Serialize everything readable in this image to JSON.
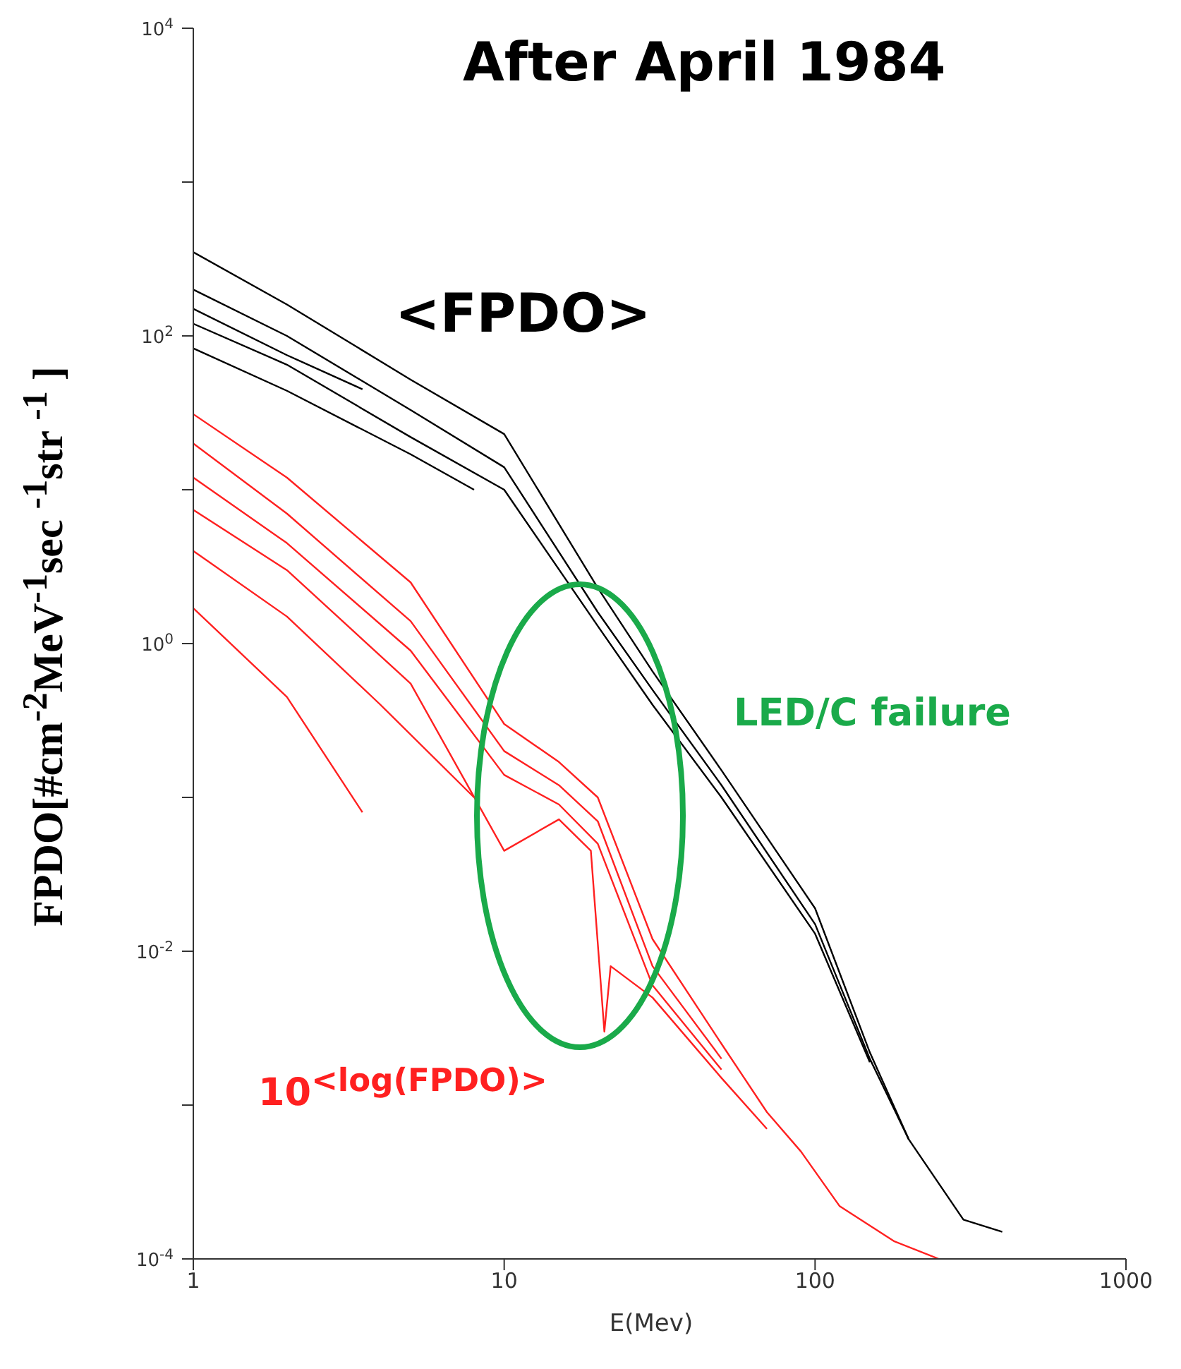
{
  "chart_data": {
    "type": "line",
    "title": "After April 1984",
    "xlabel": "E(Mev)",
    "ylabel": "FPDO[#cm$^{-2}$MeV$^{-1}$sec $^{-1}$str $^{-1}$ ]",
    "log": "xy",
    "marker": "none",
    "line_style": "solid",
    "xlim": [
      1,
      1000
    ],
    "xticks": [
      1,
      10,
      100,
      1000
    ],
    "ylim": [
      0.0001,
      10000
    ],
    "yticks": [
      {
        "value": 0.0001,
        "label": "10$^{-4}$"
      },
      {
        "value": 0.001,
        "label": null
      },
      {
        "value": 0.01,
        "label": "10$^{-2}$"
      },
      {
        "value": 0.1,
        "label": null
      },
      {
        "value": 1,
        "label": "10$^{0}$"
      },
      {
        "value": 10,
        "label": null
      },
      {
        "value": 100,
        "label": "10$^{2}$"
      },
      {
        "value": 1000,
        "label": null
      },
      {
        "value": 10000,
        "label": "10$^{4}$"
      }
    ],
    "annotations": [
      "<FPDO>",
      "LED/C failure",
      "10$^{<log(FPDO)>}$"
    ],
    "series": [
      {
        "color": "#000000",
        "x": [
          1,
          2,
          5,
          10,
          20,
          30,
          50,
          100,
          150,
          200,
          300,
          400
        ],
        "values": [
          350,
          160,
          52,
          23,
          2.3,
          0.66,
          0.15,
          0.019,
          0.0022,
          0.0006,
          0.00018,
          0.00015
        ]
      },
      {
        "color": "#000000",
        "x": [
          1,
          2,
          5,
          10,
          20,
          30,
          50,
          100,
          150,
          200
        ],
        "values": [
          200,
          100,
          33,
          14,
          1.6,
          0.5,
          0.12,
          0.015,
          0.002,
          0.0006
        ]
      },
      {
        "color": "#000000",
        "x": [
          1,
          2,
          5,
          10,
          20,
          30,
          50,
          100,
          150
        ],
        "values": [
          120,
          65,
          22,
          10,
          1.3,
          0.4,
          0.1,
          0.013,
          0.0019
        ]
      },
      {
        "color": "#000000",
        "x": [
          1,
          2,
          3.5
        ],
        "values": [
          150,
          75,
          45
        ]
      },
      {
        "color": "#000000",
        "x": [
          1,
          2,
          5,
          8
        ],
        "values": [
          83,
          44,
          17,
          10
        ]
      },
      {
        "color": "#ff2020",
        "x": [
          1,
          2,
          5,
          10,
          15,
          20,
          30,
          50,
          70,
          90,
          120,
          180,
          250
        ],
        "values": [
          31,
          12,
          2.5,
          0.3,
          0.17,
          0.1,
          0.012,
          0.0025,
          0.0009,
          0.0005,
          0.00022,
          0.00013,
          0.0001
        ]
      },
      {
        "color": "#ff2020",
        "x": [
          1,
          2,
          5,
          10,
          15,
          20,
          30,
          50
        ],
        "values": [
          20,
          7,
          1.4,
          0.2,
          0.12,
          0.07,
          0.008,
          0.002
        ]
      },
      {
        "color": "#ff2020",
        "x": [
          1,
          2,
          5,
          10,
          15,
          20,
          30,
          50
        ],
        "values": [
          12,
          4.5,
          0.9,
          0.14,
          0.09,
          0.05,
          0.006,
          0.0017
        ]
      },
      {
        "color": "#ff2020",
        "x": [
          1,
          2,
          5,
          10,
          15,
          19,
          21,
          22,
          30,
          50,
          70
        ],
        "values": [
          7.4,
          3,
          0.55,
          0.045,
          0.072,
          0.045,
          0.003,
          0.008,
          0.005,
          0.0015,
          0.0007
        ]
      },
      {
        "color": "#ff2020",
        "x": [
          1,
          2,
          4,
          8
        ],
        "values": [
          4,
          1.5,
          0.4,
          0.1
        ]
      },
      {
        "color": "#ff2020",
        "x": [
          1,
          2,
          3.5
        ],
        "values": [
          1.7,
          0.45,
          0.08
        ]
      }
    ]
  }
}
